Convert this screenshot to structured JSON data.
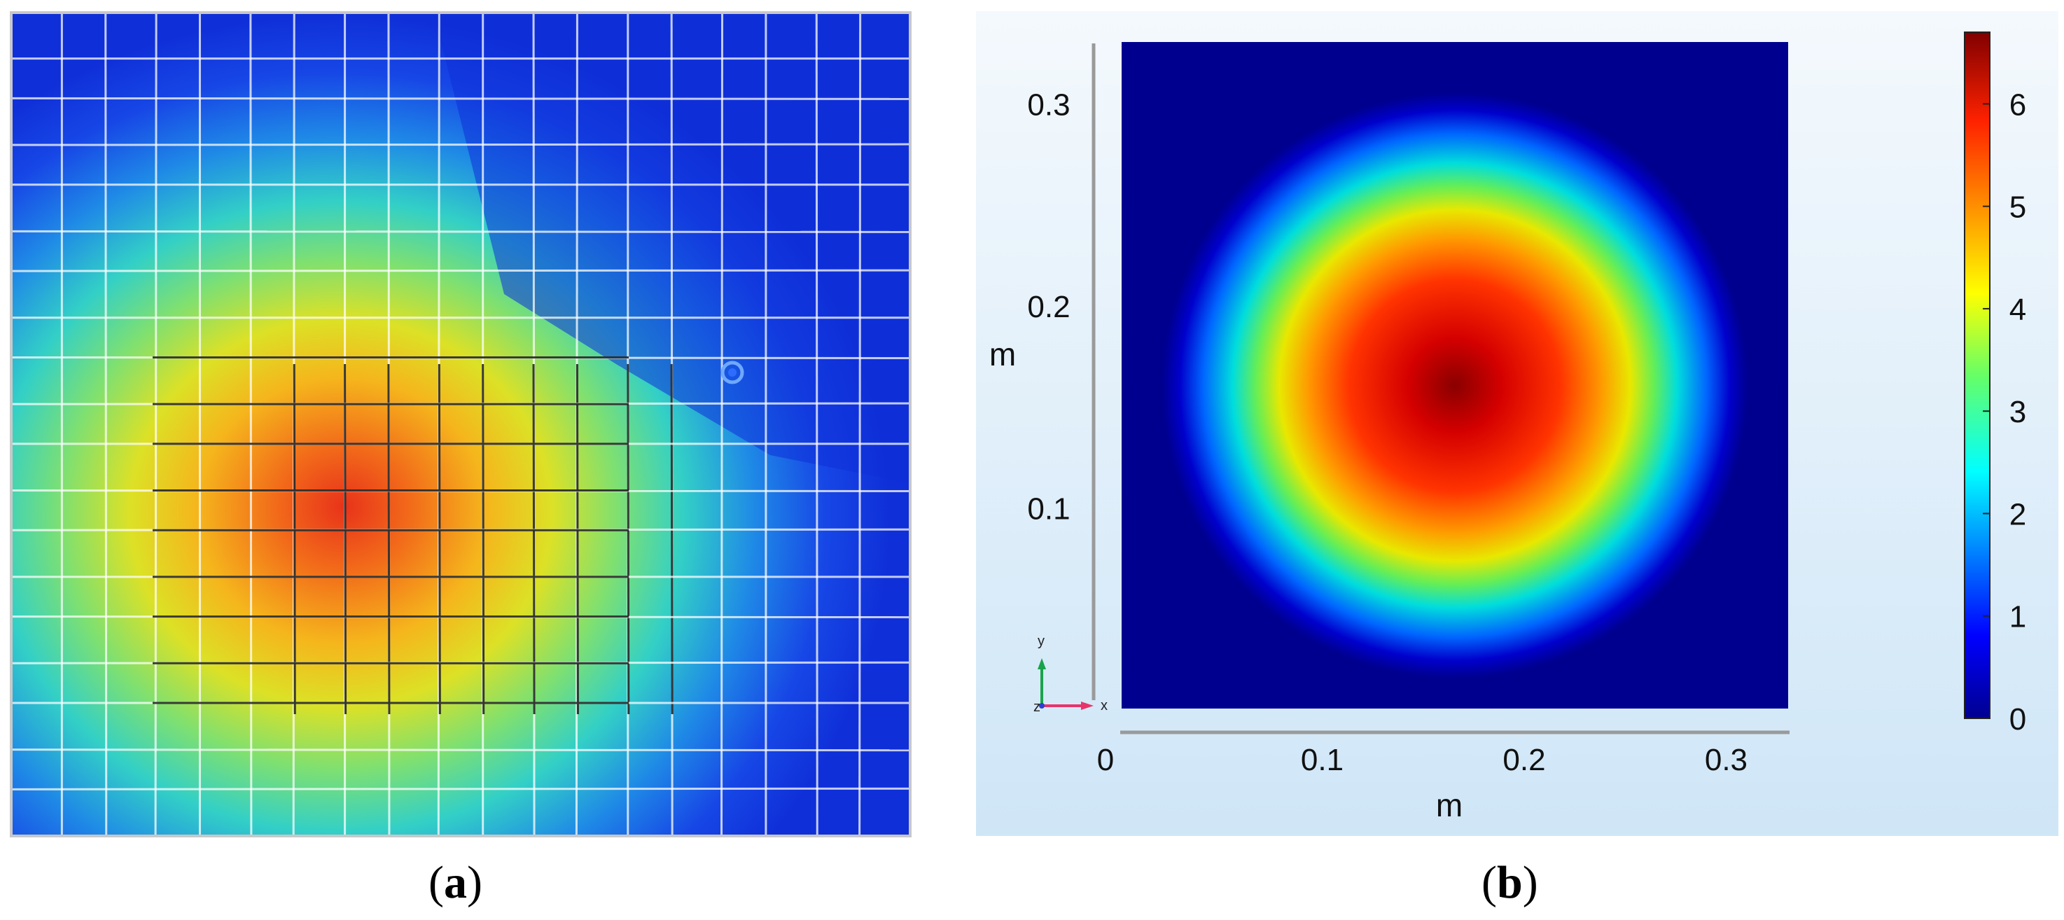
{
  "panels": {
    "a": {
      "caption_open": "(",
      "caption_letter": "a",
      "caption_close": ")"
    },
    "b": {
      "caption_open": "(",
      "caption_letter": "b",
      "caption_close": ")"
    }
  },
  "chart_data": [
    {
      "type": "heatmap",
      "panel": "a",
      "title": "",
      "xlabel": "",
      "ylabel": "",
      "description_values": {
        "peak_x_frac": 0.36,
        "peak_y_frac": 0.62
      },
      "overlay": "measurement grid",
      "marker": "circle"
    },
    {
      "type": "heatmap",
      "panel": "b",
      "title": "",
      "xlabel": "m",
      "ylabel": "m",
      "xlim": [
        0,
        0.33
      ],
      "ylim": [
        0,
        0.33
      ],
      "xticks": [
        "0",
        "0.1",
        "0.2",
        "0.3"
      ],
      "yticks": [
        "0.1",
        "0.2",
        "0.3"
      ],
      "xtick_values": [
        0,
        0.1,
        0.2,
        0.3
      ],
      "ytick_values": [
        0.1,
        0.2,
        0.3
      ],
      "peak": {
        "x": 0.165,
        "y": 0.16,
        "value": 6.6
      },
      "colorbar": {
        "min": 0,
        "max": 6.7,
        "ticks": [
          "0",
          "1",
          "2",
          "3",
          "4",
          "5",
          "6"
        ],
        "tick_values": [
          0,
          1,
          2,
          3,
          4,
          5,
          6
        ]
      },
      "triad": {
        "x": "x",
        "y": "y",
        "z": "z"
      },
      "colormap": "jet"
    }
  ]
}
